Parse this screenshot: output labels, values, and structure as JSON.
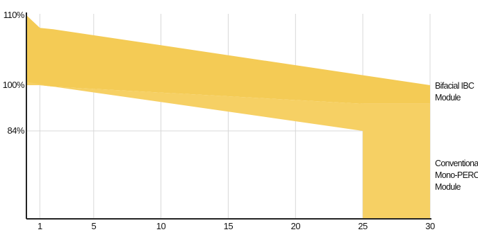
{
  "chart_data": {
    "type": "area",
    "title": "",
    "xlabel": "",
    "ylabel": "",
    "x_ticks": [
      "1",
      "5",
      "10",
      "15",
      "20",
      "25",
      "30"
    ],
    "y_ticks": [
      "110%",
      "100%",
      "84%"
    ],
    "xlim": [
      0,
      30
    ],
    "ylim": [
      69,
      111
    ],
    "grid": "vertical",
    "colors": {
      "fill": "#f4cb55",
      "fill_light": "#f6d064",
      "axis": "#222222",
      "grid": "#d8d8d8"
    },
    "series": [
      {
        "name": "Bifacial IBC Module",
        "upper": [
          [
            0,
            110
          ],
          [
            1,
            108.2
          ],
          [
            2,
            108
          ],
          [
            30,
            100
          ]
        ],
        "lower": [
          [
            0,
            100.5
          ],
          [
            1,
            100
          ],
          [
            2,
            99.5
          ],
          [
            25,
            93.5
          ],
          [
            30,
            93.5
          ]
        ]
      },
      {
        "name": "Conventional Mono-PERC Module",
        "upper": [
          [
            0,
            100
          ],
          [
            1,
            100
          ],
          [
            2,
            99.5
          ],
          [
            25,
            84
          ]
        ],
        "lower": [
          [
            25,
            84
          ],
          [
            25,
            69
          ],
          [
            30,
            69
          ]
        ]
      }
    ],
    "labels": {
      "bifacial": [
        "Bifacial IBC",
        "Module"
      ],
      "conventional": [
        "Conventional",
        "Mono-PERC",
        "Module"
      ]
    }
  }
}
